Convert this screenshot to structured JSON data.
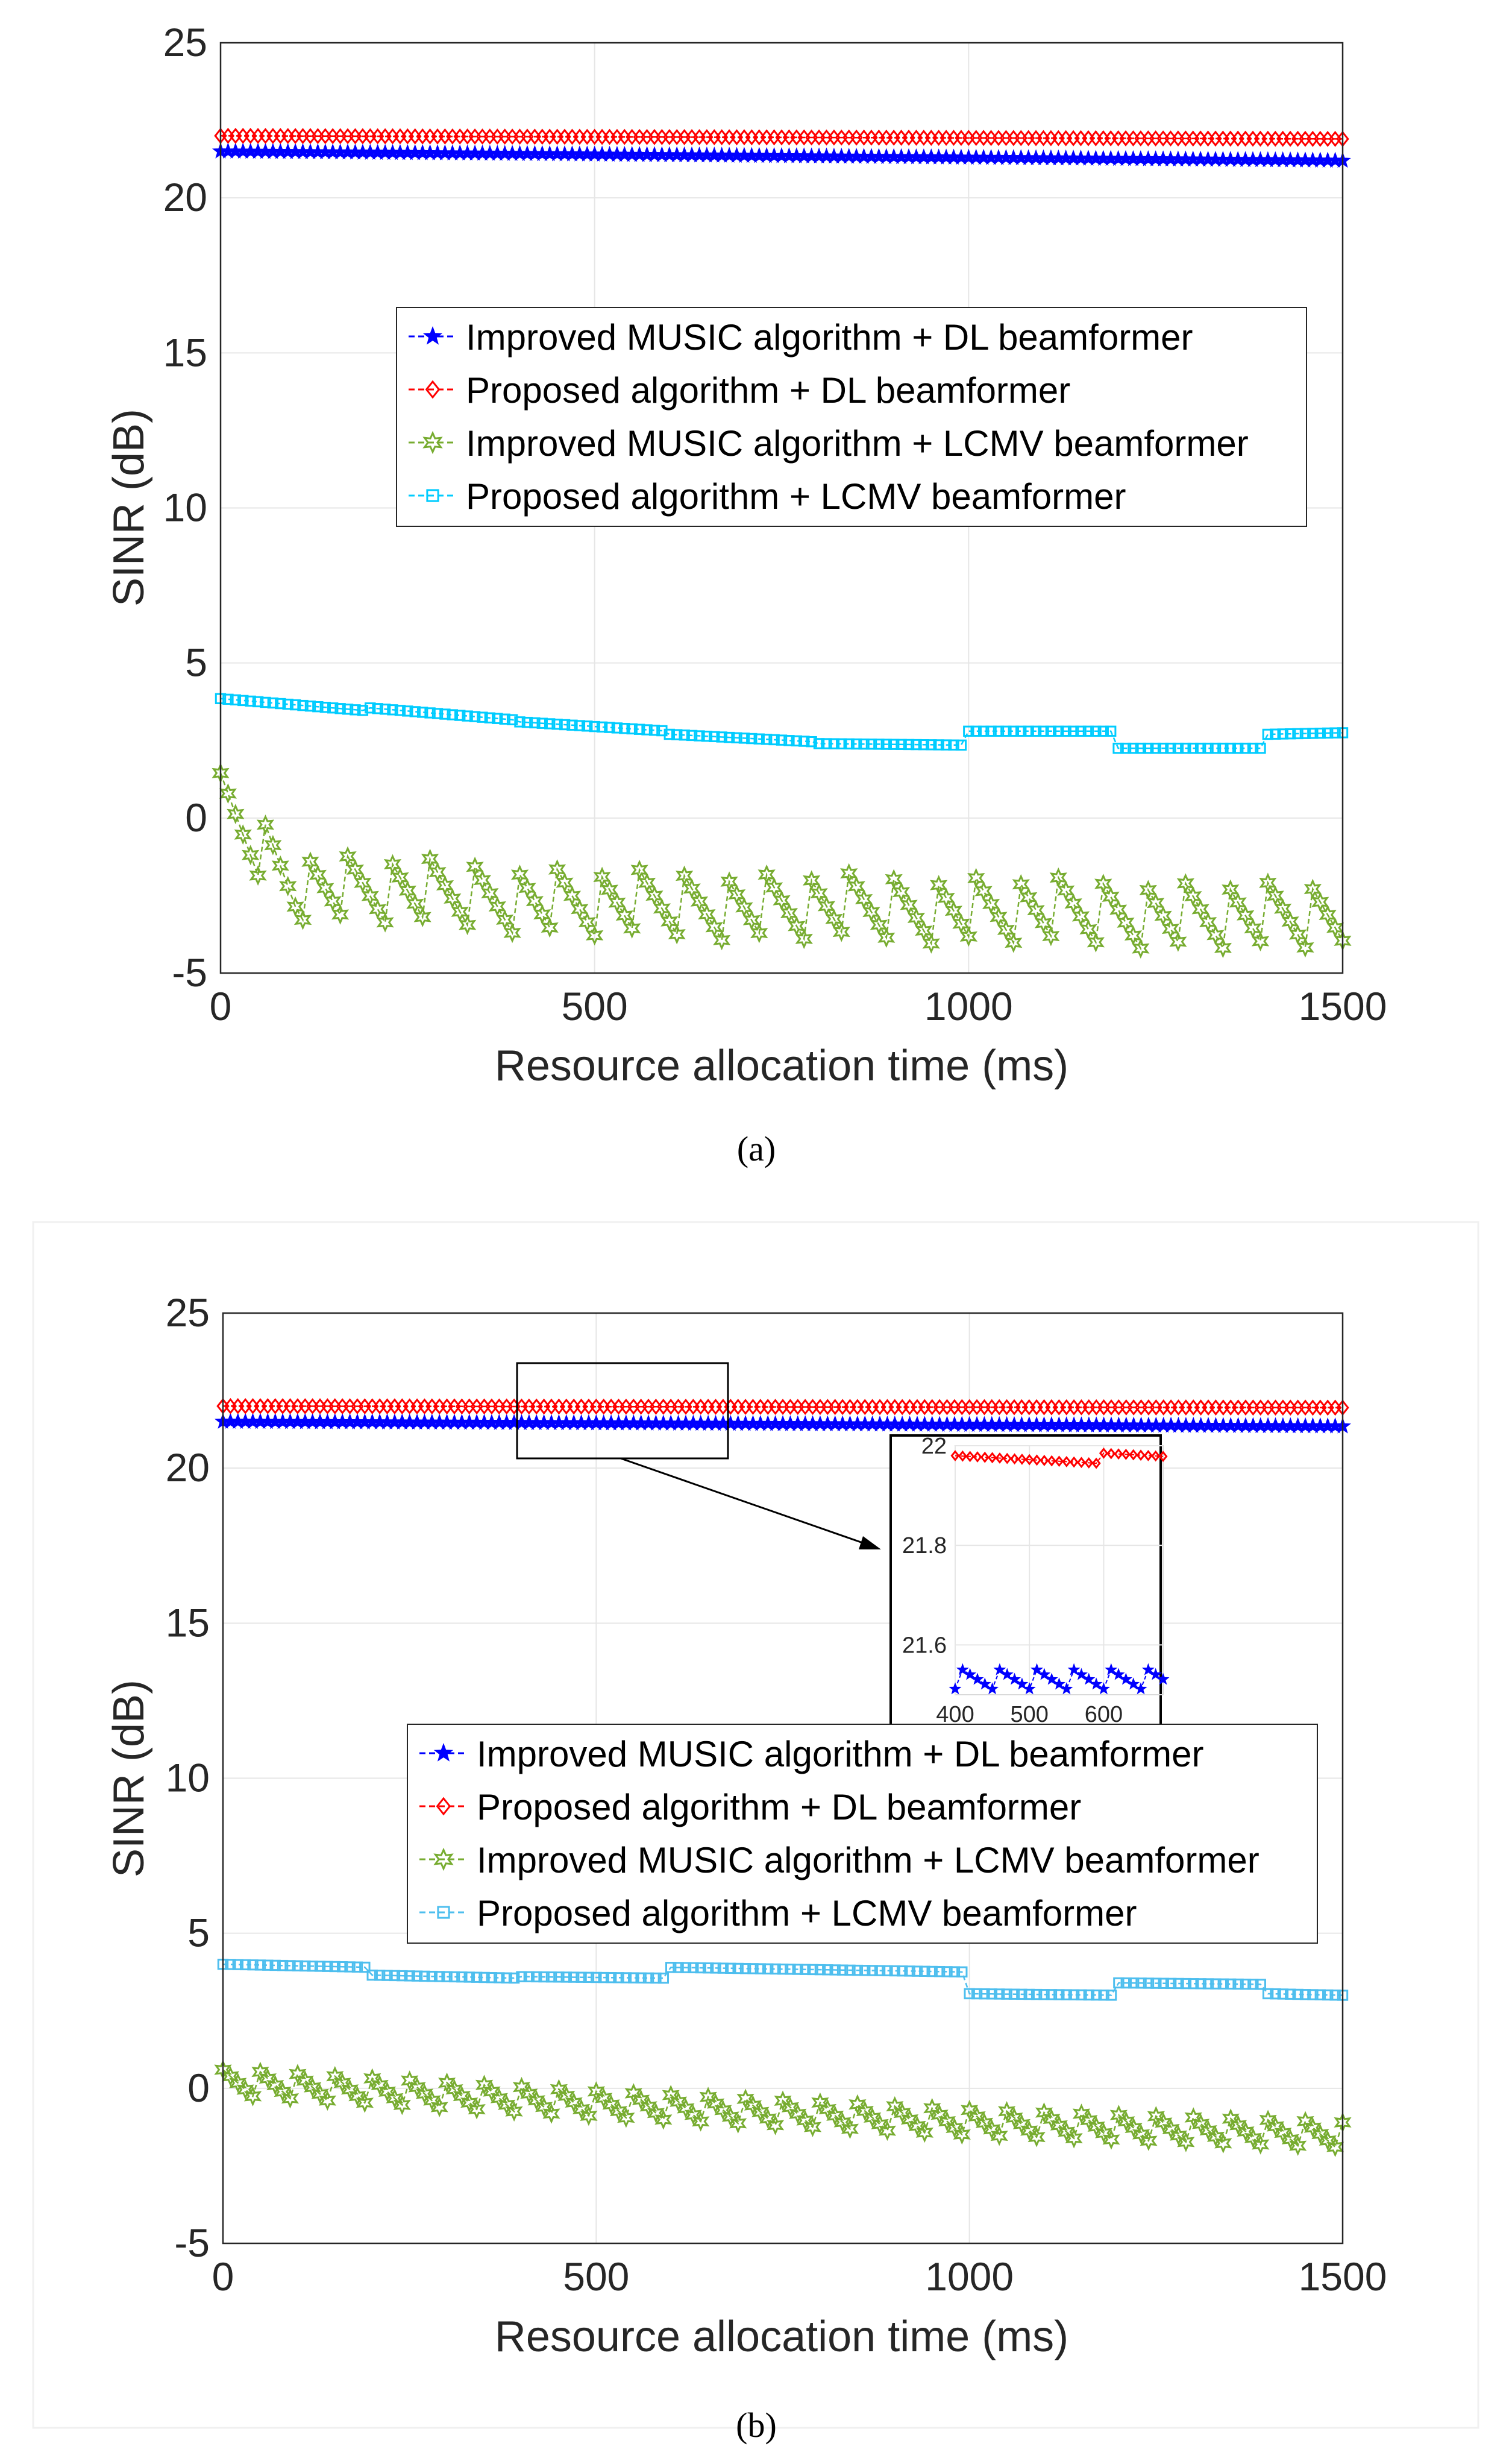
{
  "figure": {
    "captions": [
      "(a)",
      "(b)"
    ]
  },
  "chart_data": [
    {
      "type": "line",
      "panel": "(a)",
      "xlabel": "Resource allocation time (ms)",
      "ylabel": "SINR (dB)",
      "xlim": [
        0,
        1500
      ],
      "ylim": [
        -5,
        25
      ],
      "xticks": [
        0,
        500,
        1000,
        1500
      ],
      "yticks": [
        -5,
        0,
        5,
        10,
        15,
        20,
        25
      ],
      "grid": true,
      "legend_position": "upper-middle",
      "series": [
        {
          "name": "Improved MUSIC algorithm + DL beamformer",
          "color": "#0000ff",
          "marker": "star",
          "pattern": "linear",
          "points": [
            [
              0,
              21.5
            ],
            [
              1500,
              21.2
            ]
          ]
        },
        {
          "name": "Proposed algorithm + DL beamformer",
          "color": "#ff0000",
          "marker": "diamond",
          "pattern": "linear",
          "points": [
            [
              0,
              22.0
            ],
            [
              1500,
              21.9
            ]
          ]
        },
        {
          "name": "Improved MUSIC algorithm + LCMV beamformer",
          "color": "#77ac30",
          "marker": "hexagram",
          "pattern": "sawtooth",
          "sawtooth_period": 56,
          "sawtooth_amplitude": 2.3,
          "trend": [
            [
              0,
              0.3
            ],
            [
              100,
              -2.2
            ],
            [
              500,
              -2.8
            ],
            [
              1000,
              -3.0
            ],
            [
              1500,
              -3.3
            ]
          ]
        },
        {
          "name": "Proposed algorithm + LCMV beamformer",
          "color": "#00ccff",
          "marker": "square",
          "pattern": "steps",
          "steps": [
            {
              "x0": 0,
              "x1": 200,
              "y0": 3.85,
              "y1": 3.45
            },
            {
              "x0": 200,
              "x1": 400,
              "y0": 3.55,
              "y1": 3.15
            },
            {
              "x0": 400,
              "x1": 600,
              "y0": 3.1,
              "y1": 2.8
            },
            {
              "x0": 600,
              "x1": 800,
              "y0": 2.7,
              "y1": 2.45
            },
            {
              "x0": 800,
              "x1": 1000,
              "y0": 2.4,
              "y1": 2.35
            },
            {
              "x0": 1000,
              "x1": 1200,
              "y0": 2.8,
              "y1": 2.8
            },
            {
              "x0": 1200,
              "x1": 1400,
              "y0": 2.25,
              "y1": 2.25
            },
            {
              "x0": 1400,
              "x1": 1500,
              "y0": 2.7,
              "y1": 2.75
            }
          ]
        }
      ]
    },
    {
      "type": "line",
      "panel": "(b)",
      "xlabel": "Resource allocation time (ms)",
      "ylabel": "SINR (dB)",
      "xlim": [
        0,
        1500
      ],
      "ylim": [
        -5,
        25
      ],
      "xticks": [
        0,
        500,
        1000,
        1500
      ],
      "yticks": [
        -5,
        0,
        5,
        10,
        15,
        20,
        25
      ],
      "grid": true,
      "legend_position": "center-right",
      "series": [
        {
          "name": "Improved MUSIC algorithm + DL beamformer",
          "color": "#0000ff",
          "marker": "star",
          "pattern": "linear",
          "points": [
            [
              0,
              21.5
            ],
            [
              1500,
              21.35
            ]
          ]
        },
        {
          "name": "Proposed algorithm + DL beamformer",
          "color": "#ff0000",
          "marker": "diamond",
          "pattern": "linear",
          "points": [
            [
              0,
              22.0
            ],
            [
              1500,
              21.95
            ]
          ]
        },
        {
          "name": "Improved MUSIC algorithm + LCMV beamformer",
          "color": "#77ac30",
          "marker": "hexagram",
          "pattern": "sawtooth",
          "sawtooth_period": 50,
          "sawtooth_amplitude": 1.0,
          "trend": [
            [
              0,
              0.1
            ],
            [
              500,
              -0.6
            ],
            [
              1000,
              -1.2
            ],
            [
              1500,
              -1.6
            ]
          ]
        },
        {
          "name": "Proposed algorithm + LCMV beamformer",
          "color": "#4dbeee",
          "marker": "square",
          "pattern": "steps",
          "steps": [
            {
              "x0": 0,
              "x1": 200,
              "y0": 4.0,
              "y1": 3.9
            },
            {
              "x0": 200,
              "x1": 400,
              "y0": 3.65,
              "y1": 3.55
            },
            {
              "x0": 400,
              "x1": 600,
              "y0": 3.6,
              "y1": 3.55
            },
            {
              "x0": 600,
              "x1": 1000,
              "y0": 3.9,
              "y1": 3.75
            },
            {
              "x0": 1000,
              "x1": 1200,
              "y0": 3.05,
              "y1": 3.0
            },
            {
              "x0": 1200,
              "x1": 1400,
              "y0": 3.4,
              "y1": 3.35
            },
            {
              "x0": 1400,
              "x1": 1500,
              "y0": 3.05,
              "y1": 3.0
            }
          ]
        }
      ],
      "zoom_region": {
        "x": [
          400,
          680
        ],
        "y": [
          20.2,
          23.3
        ]
      },
      "inset": {
        "xlim": [
          400,
          680
        ],
        "ylim": [
          21.5,
          22.0
        ],
        "xticks": [
          400,
          500,
          600
        ],
        "yticks": [
          21.6,
          21.8,
          22
        ],
        "ytick_labels": [
          "21.6",
          "21.8",
          "22"
        ],
        "series": [
          {
            "name": "Proposed algorithm + DL beamformer",
            "color": "#ff0000",
            "marker": "diamond",
            "pattern": "inset-red"
          },
          {
            "name": "Improved MUSIC algorithm + DL beamformer",
            "color": "#0000ff",
            "marker": "star",
            "pattern": "inset-blue",
            "sawtooth_period": 50,
            "high": 21.55,
            "low": 21.52
          }
        ]
      }
    }
  ]
}
